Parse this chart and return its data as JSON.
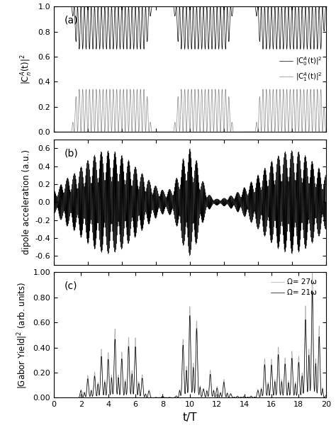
{
  "xlabel": "t/T",
  "panel_a_ylabel": "|C$^A_n$(t)|$^2$",
  "panel_b_ylabel": "dipole acceleration (a.u.)",
  "panel_c_ylabel": "|Gabor Yield|$^2$ (arb. units)",
  "xlim": [
    0,
    20
  ],
  "panel_a_ylim": [
    0.0,
    1.0
  ],
  "panel_b_ylim": [
    -0.7,
    0.7
  ],
  "panel_c_ylim": [
    0.0,
    1.0
  ],
  "panel_a_yticks": [
    0.0,
    0.2,
    0.4,
    0.6,
    0.8,
    1.0
  ],
  "panel_b_yticks": [
    -0.6,
    -0.4,
    -0.2,
    0.0,
    0.2,
    0.4,
    0.6
  ],
  "panel_c_yticks": [
    0.0,
    0.2,
    0.4,
    0.6,
    0.8,
    1.0
  ],
  "xticks": [
    0,
    2,
    4,
    6,
    8,
    10,
    12,
    14,
    16,
    18,
    20
  ],
  "color_black": "#000000",
  "color_gray": "#888888",
  "color_light_gray": "#aaaaaa",
  "label_a_black": "|C$^A_0$(t)|$^2$",
  "label_a_gray": "|C$^A_1$(t)|$^2$",
  "label_c_gray": "Ω= 27ω",
  "label_c_black": "Ω= 21ω",
  "panel_labels": [
    "(a)",
    "(b)",
    "(c)"
  ],
  "figsize": [
    4.74,
    6.07
  ],
  "dpi": 100
}
